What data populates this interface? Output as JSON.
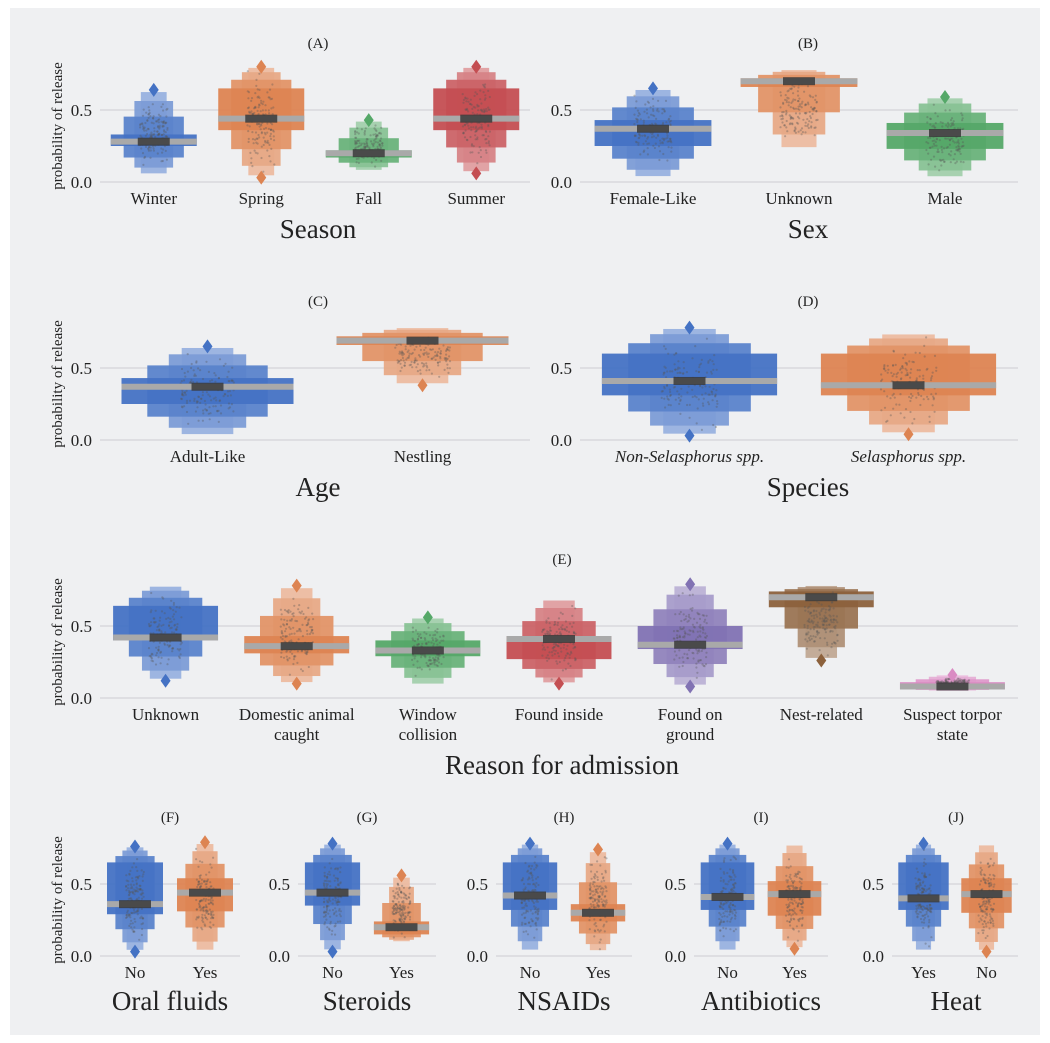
{
  "figure": {
    "background": "#eff0f2",
    "ylabel": "probability of release",
    "yticks": [
      "0.0",
      "0.5"
    ],
    "ylim": [
      0.0,
      0.8
    ],
    "colors": [
      "#4472c4",
      "#dd8452",
      "#55a868",
      "#c44e52",
      "#8172b3",
      "#8c613c",
      "#da8bc3"
    ]
  },
  "chart_data": [
    {
      "panel": "(A)",
      "type": "boxen",
      "xlabel": "Season",
      "ylabel": "probability of release",
      "ylim": [
        0.0,
        0.8
      ],
      "categories": [
        "Winter",
        "Spring",
        "Fall",
        "Summer"
      ],
      "median": [
        0.28,
        0.44,
        0.2,
        0.44
      ],
      "q1": [
        0.25,
        0.36,
        0.17,
        0.36
      ],
      "q3": [
        0.33,
        0.65,
        0.22,
        0.65
      ],
      "min": [
        0.05,
        0.03,
        0.08,
        0.06
      ],
      "max": [
        0.64,
        0.8,
        0.43,
        0.8
      ],
      "outliers": [
        [
          0.64
        ],
        [
          0.03,
          0.8
        ],
        [
          0.43
        ],
        [
          0.06,
          0.8
        ]
      ]
    },
    {
      "panel": "(B)",
      "type": "boxen",
      "xlabel": "Sex",
      "ylabel": "",
      "ylim": [
        0.0,
        0.8
      ],
      "categories": [
        "Female-Like",
        "Unknown",
        "Male"
      ],
      "median": [
        0.37,
        0.7,
        0.34
      ],
      "q1": [
        0.25,
        0.66,
        0.23
      ],
      "q3": [
        0.43,
        0.72,
        0.41
      ],
      "min": [
        0.03,
        0.22,
        0.03
      ],
      "max": [
        0.65,
        0.78,
        0.59
      ],
      "outliers": [
        [
          0.65
        ],
        [],
        [
          0.59
        ]
      ]
    },
    {
      "panel": "(C)",
      "type": "boxen",
      "xlabel": "Age",
      "ylabel": "probability of release",
      "ylim": [
        0.0,
        0.8
      ],
      "categories": [
        "Adult-Like",
        "Nestling"
      ],
      "median": [
        0.37,
        0.69
      ],
      "q1": [
        0.25,
        0.66
      ],
      "q3": [
        0.43,
        0.72
      ],
      "min": [
        0.03,
        0.38
      ],
      "max": [
        0.65,
        0.78
      ],
      "outliers": [
        [
          0.65
        ],
        [
          0.38
        ]
      ]
    },
    {
      "panel": "(D)",
      "type": "boxen",
      "xlabel": "Species",
      "ylabel": "",
      "ylim": [
        0.0,
        0.8
      ],
      "categories": [
        "Non-Selasphorus spp.",
        "Selasphorus spp."
      ],
      "median": [
        0.41,
        0.38
      ],
      "q1": [
        0.31,
        0.31
      ],
      "q3": [
        0.6,
        0.6
      ],
      "min": [
        0.03,
        0.04
      ],
      "max": [
        0.78,
        0.74
      ],
      "outliers": [
        [
          0.03,
          0.78
        ],
        [
          0.04
        ]
      ]
    },
    {
      "panel": "(E)",
      "type": "boxen",
      "xlabel": "Reason for admission",
      "ylabel": "probability of release",
      "ylim": [
        0.0,
        0.8
      ],
      "categories": [
        "Unknown",
        "Domestic animal caught",
        "Window collision",
        "Found inside",
        "Found on ground",
        "Nest-related",
        "Suspect torpor state"
      ],
      "median": [
        0.42,
        0.36,
        0.33,
        0.41,
        0.37,
        0.7,
        0.08
      ],
      "q1": [
        0.4,
        0.31,
        0.29,
        0.27,
        0.34,
        0.63,
        0.06
      ],
      "q3": [
        0.64,
        0.43,
        0.4,
        0.43,
        0.5,
        0.74,
        0.11
      ],
      "min": [
        0.12,
        0.1,
        0.09,
        0.1,
        0.08,
        0.26,
        0.05
      ],
      "max": [
        0.78,
        0.78,
        0.56,
        0.69,
        0.79,
        0.78,
        0.16
      ],
      "outliers": [
        [
          0.12
        ],
        [
          0.1,
          0.78
        ],
        [
          0.56
        ],
        [
          0.1
        ],
        [
          0.08,
          0.79
        ],
        [
          0.26
        ],
        [
          0.16
        ]
      ]
    },
    {
      "panel": "(F)",
      "type": "boxen",
      "xlabel": "Oral fluids",
      "ylabel": "probability of release",
      "ylim": [
        0.0,
        0.8
      ],
      "categories": [
        "No",
        "Yes"
      ],
      "median": [
        0.36,
        0.44
      ],
      "q1": [
        0.29,
        0.31
      ],
      "q3": [
        0.65,
        0.54
      ],
      "min": [
        0.03,
        0.03
      ],
      "max": [
        0.76,
        0.79
      ],
      "outliers": [
        [
          0.03,
          0.76
        ],
        [
          0.79
        ]
      ]
    },
    {
      "panel": "(G)",
      "type": "boxen",
      "xlabel": "Steroids",
      "ylabel": "",
      "ylim": [
        0.0,
        0.8
      ],
      "categories": [
        "No",
        "Yes"
      ],
      "median": [
        0.44,
        0.2
      ],
      "q1": [
        0.35,
        0.15
      ],
      "q3": [
        0.65,
        0.24
      ],
      "min": [
        0.03,
        0.1
      ],
      "max": [
        0.78,
        0.56
      ],
      "outliers": [
        [
          0.03,
          0.78
        ],
        [
          0.56
        ]
      ]
    },
    {
      "panel": "(H)",
      "type": "boxen",
      "xlabel": "NSAIDs",
      "ylabel": "",
      "ylim": [
        0.0,
        0.8
      ],
      "categories": [
        "No",
        "Yes"
      ],
      "median": [
        0.42,
        0.3
      ],
      "q1": [
        0.32,
        0.24
      ],
      "q3": [
        0.65,
        0.36
      ],
      "min": [
        0.03,
        0.03
      ],
      "max": [
        0.78,
        0.74
      ],
      "outliers": [
        [
          0.78
        ],
        [
          0.74
        ]
      ]
    },
    {
      "panel": "(I)",
      "type": "boxen",
      "xlabel": "Antibiotics",
      "ylabel": "",
      "ylim": [
        0.0,
        0.8
      ],
      "categories": [
        "No",
        "Yes"
      ],
      "median": [
        0.41,
        0.43
      ],
      "q1": [
        0.32,
        0.28
      ],
      "q3": [
        0.65,
        0.52
      ],
      "min": [
        0.03,
        0.05
      ],
      "max": [
        0.78,
        0.78
      ],
      "outliers": [
        [
          0.78
        ],
        [
          0.05
        ]
      ]
    },
    {
      "panel": "(J)",
      "type": "boxen",
      "xlabel": "Heat",
      "ylabel": "",
      "ylim": [
        0.0,
        0.8
      ],
      "categories": [
        "Yes",
        "No"
      ],
      "median": [
        0.4,
        0.43
      ],
      "q1": [
        0.32,
        0.3
      ],
      "q3": [
        0.65,
        0.54
      ],
      "min": [
        0.03,
        0.03
      ],
      "max": [
        0.78,
        0.78
      ],
      "outliers": [
        [
          0.78
        ],
        [
          0.03
        ]
      ]
    }
  ]
}
